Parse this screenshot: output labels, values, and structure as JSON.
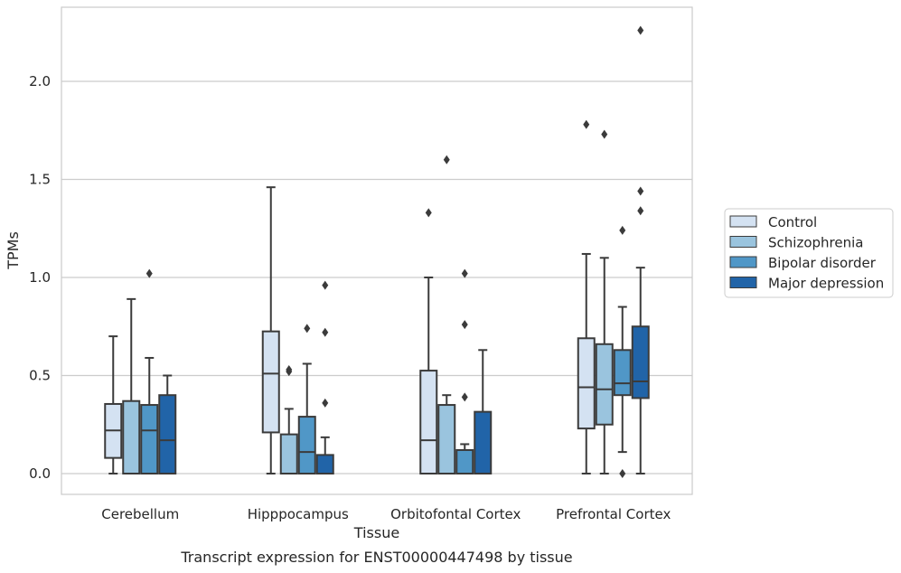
{
  "chart_data": {
    "type": "box",
    "title": "",
    "caption": "Transcript expression for ENST00000447498 by tissue",
    "xlabel": "Tissue",
    "ylabel": "TPMs",
    "ylim": [
      -0.11,
      2.39
    ],
    "yticks": [
      "0.0",
      "0.5",
      "1.0",
      "1.5",
      "2.0"
    ],
    "grid": "horizontal",
    "legend_position": "right",
    "categories": [
      "Cerebellum",
      "Hipppocampus",
      "Orbitofontal Cortex",
      "Prefrontal Cortex"
    ],
    "series": [
      {
        "name": "Control",
        "color": "#d4e2f2",
        "boxes": [
          {
            "whislo": 0.0,
            "q1": 0.08,
            "med": 0.22,
            "q3": 0.355,
            "whishi": 0.7,
            "fliers": []
          },
          {
            "whislo": 0.0,
            "q1": 0.21,
            "med": 0.51,
            "q3": 0.725,
            "whishi": 1.46,
            "fliers": []
          },
          {
            "whislo": 0.0,
            "q1": 0.0,
            "med": 0.17,
            "q3": 0.525,
            "whishi": 1.0,
            "fliers": [
              1.33
            ]
          },
          {
            "whislo": 0.0,
            "q1": 0.23,
            "med": 0.44,
            "q3": 0.69,
            "whishi": 1.12,
            "fliers": [
              1.78
            ]
          }
        ]
      },
      {
        "name": "Schizophrenia",
        "color": "#9ac4de",
        "boxes": [
          {
            "whislo": 0.0,
            "q1": 0.0,
            "med": 0.0,
            "q3": 0.37,
            "whishi": 0.89,
            "fliers": []
          },
          {
            "whislo": 0.0,
            "q1": 0.0,
            "med": 0.0,
            "q3": 0.2,
            "whishi": 0.33,
            "fliers": [
              0.52,
              0.53
            ]
          },
          {
            "whislo": 0.0,
            "q1": 0.0,
            "med": 0.0,
            "q3": 0.35,
            "whishi": 0.4,
            "fliers": [
              1.6
            ]
          },
          {
            "whislo": 0.0,
            "q1": 0.25,
            "med": 0.43,
            "q3": 0.66,
            "whishi": 1.1,
            "fliers": [
              1.73
            ]
          }
        ]
      },
      {
        "name": "Bipolar disorder",
        "color": "#5097c7",
        "boxes": [
          {
            "whislo": 0.0,
            "q1": 0.0,
            "med": 0.22,
            "q3": 0.35,
            "whishi": 0.59,
            "fliers": [
              1.02
            ]
          },
          {
            "whislo": 0.0,
            "q1": 0.0,
            "med": 0.11,
            "q3": 0.29,
            "whishi": 0.56,
            "fliers": [
              0.74
            ]
          },
          {
            "whislo": 0.0,
            "q1": 0.0,
            "med": 0.0,
            "q3": 0.12,
            "whishi": 0.15,
            "fliers": [
              1.02,
              0.76,
              0.39
            ]
          },
          {
            "whislo": 0.11,
            "q1": 0.4,
            "med": 0.46,
            "q3": 0.63,
            "whishi": 0.85,
            "fliers": [
              1.24,
              0.0
            ]
          }
        ]
      },
      {
        "name": "Major depression",
        "color": "#2164a8",
        "boxes": [
          {
            "whislo": 0.0,
            "q1": 0.0,
            "med": 0.17,
            "q3": 0.4,
            "whishi": 0.5,
            "fliers": []
          },
          {
            "whislo": 0.0,
            "q1": 0.0,
            "med": 0.0,
            "q3": 0.095,
            "whishi": 0.185,
            "fliers": [
              0.96,
              0.72,
              0.36
            ]
          },
          {
            "whislo": 0.0,
            "q1": 0.0,
            "med": 0.0,
            "q3": 0.315,
            "whishi": 0.63,
            "fliers": []
          },
          {
            "whislo": 0.0,
            "q1": 0.385,
            "med": 0.47,
            "q3": 0.75,
            "whishi": 1.05,
            "fliers": [
              2.26,
              1.44,
              1.34
            ]
          }
        ]
      }
    ]
  }
}
